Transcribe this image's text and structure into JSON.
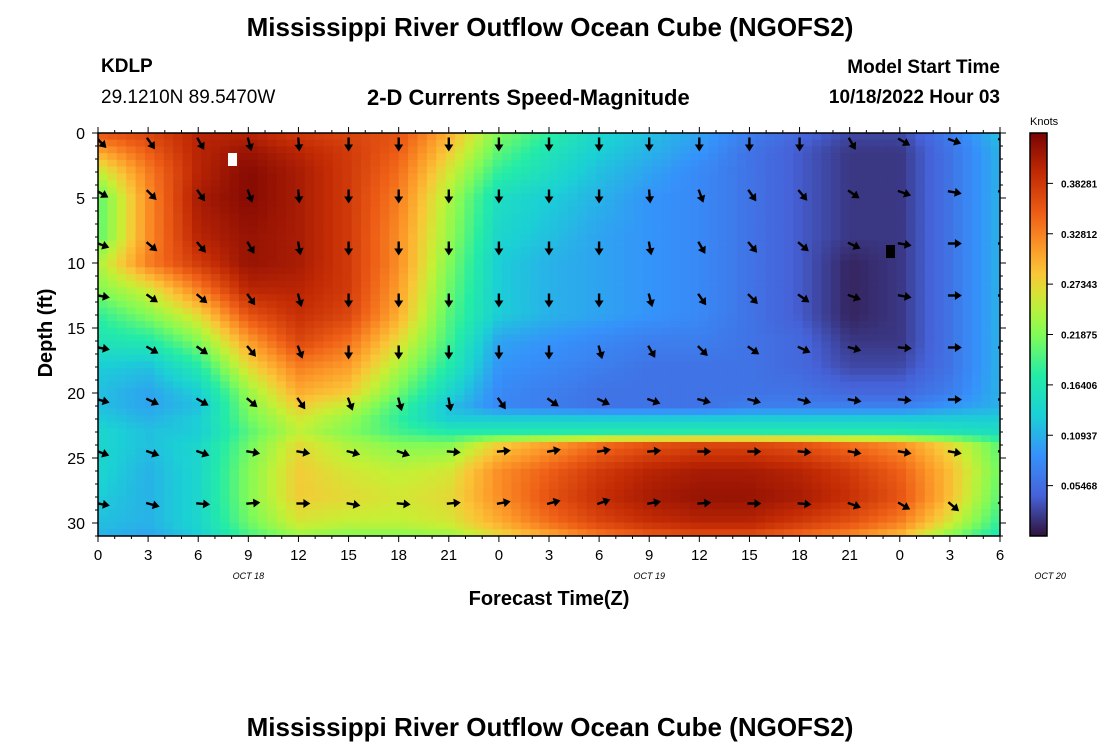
{
  "page": {
    "title": "Mississippi River Outflow Ocean Cube (NGOFS2)",
    "station_id": "KDLP",
    "coordinates": "29.1210N  89.5470W",
    "subtitle": "2-D Currents Speed-Magnitude",
    "model_start_label": "Model Start Time",
    "model_start_value": "10/18/2022 Hour 03",
    "footer_title": "Mississippi River Outflow Ocean Cube (NGOFS2)"
  },
  "chart_data": {
    "type": "heatmap",
    "title": "2-D Currents Speed-Magnitude",
    "xlabel": "Forecast Time(Z)",
    "ylabel": "Depth (ft)",
    "x_tick_labels": [
      "0",
      "3",
      "6",
      "9",
      "12",
      "15",
      "18",
      "21",
      "0",
      "3",
      "6",
      "9",
      "12",
      "15",
      "18",
      "21",
      "0",
      "3",
      "6"
    ],
    "x_date_labels": [
      "OCT 18",
      "OCT 19",
      "OCT 20"
    ],
    "x_date_positions_hours": [
      9,
      33,
      57
    ],
    "x_range_hours": [
      0,
      54
    ],
    "y_ticks": [
      0,
      5,
      10,
      15,
      20,
      25,
      30
    ],
    "ylim": [
      0,
      31
    ],
    "colorbar": {
      "label": "Knots",
      "tick_labels": [
        "0.38281",
        "0.32812",
        "0.27343",
        "0.21875",
        "0.16406",
        "0.10937",
        "0.05468"
      ],
      "range": [
        0.0,
        0.4375
      ]
    },
    "speed_field": {
      "units": "knots",
      "depths_ft": [
        0,
        1.5,
        3,
        5,
        8,
        10,
        12,
        14,
        16,
        18,
        20,
        21,
        22,
        23,
        24,
        26,
        28,
        30,
        31
      ],
      "times_hours": [
        0,
        3,
        6,
        9,
        12,
        15,
        18,
        21,
        24,
        27,
        30,
        33,
        36,
        39,
        42,
        45,
        48,
        51,
        54
      ],
      "values": [
        [
          0.36,
          0.37,
          0.4,
          0.4,
          0.38,
          0.37,
          0.36,
          0.3,
          0.22,
          0.18,
          0.14,
          0.12,
          0.1,
          0.07,
          0.05,
          0.03,
          0.03,
          0.07,
          0.12
        ],
        [
          0.3,
          0.35,
          0.4,
          0.42,
          0.4,
          0.38,
          0.35,
          0.28,
          0.2,
          0.16,
          0.13,
          0.11,
          0.09,
          0.06,
          0.04,
          0.02,
          0.02,
          0.06,
          0.11
        ],
        [
          0.25,
          0.33,
          0.4,
          0.43,
          0.41,
          0.38,
          0.34,
          0.26,
          0.18,
          0.15,
          0.12,
          0.1,
          0.08,
          0.06,
          0.04,
          0.02,
          0.02,
          0.06,
          0.11
        ],
        [
          0.2,
          0.32,
          0.41,
          0.43,
          0.41,
          0.38,
          0.33,
          0.24,
          0.15,
          0.13,
          0.11,
          0.09,
          0.08,
          0.06,
          0.04,
          0.02,
          0.02,
          0.06,
          0.11
        ],
        [
          0.2,
          0.32,
          0.4,
          0.42,
          0.41,
          0.38,
          0.32,
          0.23,
          0.14,
          0.12,
          0.1,
          0.09,
          0.08,
          0.06,
          0.04,
          0.02,
          0.02,
          0.06,
          0.11
        ],
        [
          0.24,
          0.33,
          0.38,
          0.42,
          0.41,
          0.38,
          0.32,
          0.22,
          0.13,
          0.11,
          0.1,
          0.09,
          0.08,
          0.06,
          0.04,
          0.01,
          0.02,
          0.06,
          0.11
        ],
        [
          0.22,
          0.26,
          0.33,
          0.4,
          0.4,
          0.38,
          0.31,
          0.21,
          0.13,
          0.11,
          0.1,
          0.09,
          0.08,
          0.06,
          0.04,
          0.01,
          0.02,
          0.06,
          0.11
        ],
        [
          0.18,
          0.22,
          0.27,
          0.36,
          0.39,
          0.37,
          0.3,
          0.2,
          0.13,
          0.11,
          0.1,
          0.09,
          0.08,
          0.06,
          0.04,
          0.01,
          0.02,
          0.06,
          0.11
        ],
        [
          0.16,
          0.17,
          0.22,
          0.31,
          0.37,
          0.34,
          0.27,
          0.19,
          0.1,
          0.09,
          0.08,
          0.07,
          0.07,
          0.06,
          0.05,
          0.02,
          0.02,
          0.06,
          0.11
        ],
        [
          0.13,
          0.12,
          0.17,
          0.27,
          0.33,
          0.31,
          0.24,
          0.17,
          0.09,
          0.08,
          0.07,
          0.06,
          0.06,
          0.06,
          0.05,
          0.03,
          0.03,
          0.06,
          0.11
        ],
        [
          0.12,
          0.1,
          0.13,
          0.23,
          0.3,
          0.28,
          0.21,
          0.14,
          0.08,
          0.07,
          0.06,
          0.06,
          0.06,
          0.06,
          0.06,
          0.05,
          0.05,
          0.07,
          0.11
        ],
        [
          0.12,
          0.1,
          0.12,
          0.22,
          0.28,
          0.25,
          0.19,
          0.12,
          0.08,
          0.07,
          0.06,
          0.06,
          0.06,
          0.07,
          0.07,
          0.07,
          0.07,
          0.09,
          0.11
        ],
        [
          0.13,
          0.11,
          0.13,
          0.21,
          0.26,
          0.23,
          0.18,
          0.13,
          0.13,
          0.13,
          0.13,
          0.13,
          0.13,
          0.13,
          0.13,
          0.13,
          0.13,
          0.13,
          0.13
        ],
        [
          0.14,
          0.12,
          0.13,
          0.2,
          0.25,
          0.22,
          0.19,
          0.17,
          0.17,
          0.17,
          0.17,
          0.17,
          0.17,
          0.17,
          0.17,
          0.17,
          0.17,
          0.16,
          0.15
        ],
        [
          0.14,
          0.12,
          0.14,
          0.21,
          0.27,
          0.24,
          0.22,
          0.22,
          0.28,
          0.31,
          0.34,
          0.36,
          0.37,
          0.37,
          0.36,
          0.34,
          0.32,
          0.27,
          0.2
        ],
        [
          0.14,
          0.11,
          0.14,
          0.22,
          0.28,
          0.26,
          0.25,
          0.26,
          0.32,
          0.35,
          0.38,
          0.4,
          0.41,
          0.41,
          0.4,
          0.38,
          0.35,
          0.29,
          0.21
        ],
        [
          0.13,
          0.11,
          0.14,
          0.22,
          0.28,
          0.27,
          0.26,
          0.27,
          0.32,
          0.36,
          0.39,
          0.41,
          0.42,
          0.42,
          0.41,
          0.39,
          0.36,
          0.29,
          0.2
        ],
        [
          0.12,
          0.11,
          0.14,
          0.21,
          0.26,
          0.25,
          0.25,
          0.26,
          0.3,
          0.34,
          0.37,
          0.39,
          0.4,
          0.4,
          0.38,
          0.36,
          0.33,
          0.26,
          0.18
        ],
        [
          0.11,
          0.1,
          0.13,
          0.19,
          0.23,
          0.22,
          0.22,
          0.23,
          0.27,
          0.3,
          0.33,
          0.35,
          0.36,
          0.36,
          0.34,
          0.32,
          0.29,
          0.22,
          0.16
        ]
      ]
    },
    "current_vectors": {
      "times_hours": [
        0,
        3,
        6,
        9,
        12,
        15,
        18,
        21,
        24,
        27,
        30,
        33,
        36,
        39,
        42,
        45,
        48,
        51,
        54
      ],
      "depths_ft": [
        0.5,
        4.5,
        8.5,
        12.5,
        16.5,
        20.5,
        24.5,
        28.5
      ],
      "directions_deg": [
        [
          135,
          145,
          150,
          165,
          175,
          180,
          180,
          180,
          180,
          180,
          180,
          180,
          180,
          180,
          180,
          150,
          120,
          110,
          110
        ],
        [
          120,
          135,
          145,
          160,
          175,
          180,
          180,
          180,
          180,
          180,
          180,
          175,
          160,
          145,
          140,
          125,
          110,
          100,
          100
        ],
        [
          110,
          130,
          140,
          150,
          170,
          180,
          180,
          180,
          180,
          180,
          180,
          170,
          150,
          140,
          130,
          115,
          100,
          90,
          90
        ],
        [
          100,
          125,
          130,
          145,
          165,
          180,
          180,
          180,
          180,
          180,
          180,
          165,
          145,
          135,
          125,
          110,
          100,
          90,
          90
        ],
        [
          100,
          120,
          125,
          140,
          160,
          180,
          180,
          180,
          180,
          180,
          165,
          150,
          135,
          125,
          115,
          105,
          95,
          90,
          90
        ],
        [
          105,
          115,
          120,
          130,
          145,
          160,
          165,
          170,
          145,
          125,
          115,
          110,
          105,
          105,
          105,
          100,
          95,
          90,
          90
        ],
        [
          110,
          110,
          110,
          100,
          100,
          105,
          110,
          95,
          85,
          80,
          80,
          85,
          90,
          90,
          95,
          100,
          100,
          100,
          100
        ],
        [
          100,
          105,
          95,
          85,
          90,
          100,
          95,
          85,
          80,
          75,
          70,
          80,
          85,
          90,
          95,
          110,
          120,
          130,
          130
        ]
      ]
    }
  }
}
